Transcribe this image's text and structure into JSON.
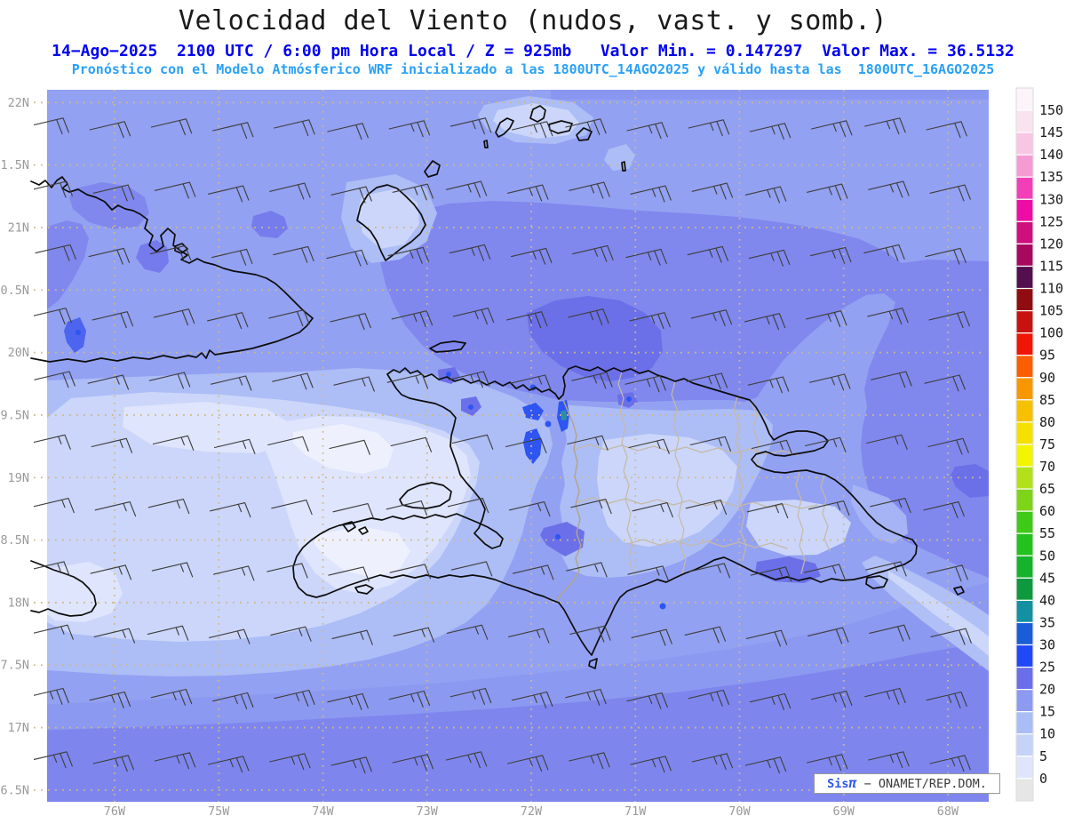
{
  "header": {
    "title": "Velocidad del Viento (nudos, vast. y somb.)",
    "line2": "14−Ago−2025  2100 UTC / 6:00 pm Hora Local / Z = 925mb   Valor Min. = 0.147297  Valor Max. = 36.5132",
    "line3": "Pronóstico con el Modelo Atmósferico WRF inicializado a las 1800UTC_14AGO2025 y válido hasta las  1800UTC_16AGO2025"
  },
  "watermark": {
    "brand": "Sis",
    "pi": "π",
    "rest": " − ONAMET/REP.DOM."
  },
  "axes": {
    "lat_labels": [
      "22N",
      "1.5N",
      "21N",
      "0.5N",
      "20N",
      "9.5N",
      "19N",
      "8.5N",
      "18N",
      "7.5N",
      "17N",
      "6.5N"
    ],
    "lon_labels": [
      "76W",
      "75W",
      "74W",
      "73W",
      "72W",
      "71W",
      "70W",
      "69W",
      "68W"
    ]
  },
  "colorbar": {
    "tick_labels": [
      "150",
      "145",
      "140",
      "135",
      "130",
      "125",
      "120",
      "115",
      "110",
      "105",
      "100",
      "95",
      "90",
      "85",
      "80",
      "75",
      "70",
      "65",
      "60",
      "55",
      "50",
      "45",
      "40",
      "35",
      "30",
      "25",
      "20",
      "15",
      "10",
      "5",
      "0"
    ],
    "segment_colors_top_to_bottom": [
      "#fdf4fa",
      "#fbe2ef",
      "#f8c6e3",
      "#f49bd4",
      "#f23fb8",
      "#ee0da4",
      "#cf0f7e",
      "#a8095f",
      "#530f4e",
      "#8f0d10",
      "#c81210",
      "#f01504",
      "#fa5e00",
      "#f99700",
      "#f7c100",
      "#f6e000",
      "#f3f400",
      "#b2e11b",
      "#7dd419",
      "#3eca16",
      "#21c31c",
      "#15b32b",
      "#0e993e",
      "#1390a2",
      "#1a5dd8",
      "#1f49f6",
      "#6a6fe9",
      "#8c9af1",
      "#a9bdf6",
      "#c5d3f9",
      "#dfe5fb",
      "#e6e6e6"
    ]
  },
  "chart_data": {
    "type": "heatmap",
    "title": "Velocidad del Viento (nudos, vast. y somb.)",
    "variable": "Velocidad del Viento",
    "units": "nudos",
    "pressure_level": "925mb",
    "model": "WRF",
    "run_label": "14-Ago-2025 2100 UTC / 6:00 pm Hora Local",
    "initialized": "1800UTC_14AGO2025",
    "valid_until": "1800UTC_16AGO2025",
    "value_min": 0.147297,
    "value_max": 36.5132,
    "xlabel_ticks": [
      "76W",
      "75W",
      "74W",
      "73W",
      "72W",
      "71W",
      "70W",
      "69W",
      "68W"
    ],
    "ylabel_ticks": [
      "22N",
      "21.5N",
      "21N",
      "20.5N",
      "20N",
      "19.5N",
      "19N",
      "18.5N",
      "18N",
      "17.5N",
      "17N",
      "16.5N"
    ],
    "lon_range_deg_w": [
      76.8,
      67.6
    ],
    "lat_range_deg_n": [
      16.4,
      22.13
    ],
    "grid": true,
    "legend_position": "right",
    "palette_levels_knots": [
      0,
      5,
      10,
      15,
      20,
      25,
      30,
      35,
      40,
      45,
      50,
      55,
      60,
      65,
      70,
      75,
      80,
      85,
      90,
      95,
      100,
      105,
      110,
      115,
      120,
      125,
      130,
      135,
      140,
      145,
      150
    ],
    "field_summary": {
      "background_trade_winds_knots": [
        15,
        20
      ],
      "stronger_band_north_of_hispaniola_knots": [
        20,
        25
      ],
      "stronger_band_south_caribbean_knots": [
        20,
        25
      ],
      "light_wind_area_sw_haiti_and_se_cuba_knots": [
        0,
        10
      ],
      "maximum_knots_near": "costa de Monte Cristi / noroeste de Republica Dominicana (35-40)",
      "bright_spots_knots": [
        25,
        30
      ]
    },
    "regions_depicted": [
      "este de Cuba",
      "Haiti",
      "Republica Dominicana",
      "este de Jamaica",
      "Islas Turcas y Caicos",
      "Gran Inagua",
      "Isla Tortuga",
      "Isla Gonave",
      "Isla Saona",
      "Isla Mona"
    ],
    "overlay": "barbas de viento (vast.) cada ~0.5 grados, vientos del este"
  }
}
